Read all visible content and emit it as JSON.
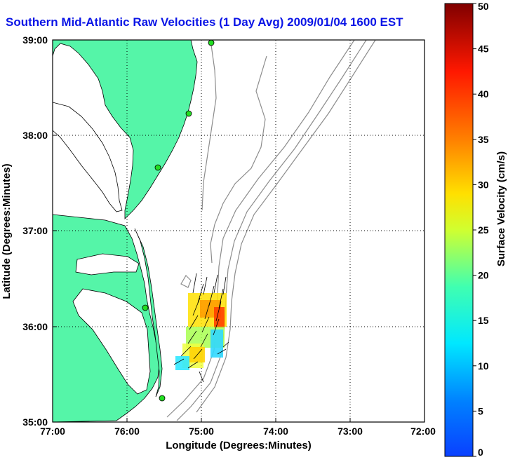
{
  "title": "Southern Mid-Atlantic Raw Velocities (1 Day Avg) 2009/01/04 1600 EST",
  "map": {
    "xlabel": "Longitude (Degrees:Minutes)",
    "ylabel": "Latitude (Degrees:Minutes)",
    "x_ticks": [
      "77:00",
      "76:00",
      "75:00",
      "74:00",
      "73:00",
      "72:00"
    ],
    "y_ticks": [
      "39:00",
      "38:00",
      "37:00",
      "36:00",
      "35:00"
    ],
    "lon_range": [
      -77,
      -72
    ],
    "lat_range": [
      35,
      39
    ],
    "grid": "dotted",
    "land_color": "#55f5a8",
    "water_color": "#ffffff",
    "bathymetry_color": "#8c8c8c",
    "station_color": "#22dd22",
    "stations": [
      {
        "lon": -74.86,
        "lat": 38.96
      },
      {
        "lon": -75.12,
        "lat": 38.22
      },
      {
        "lon": -75.58,
        "lat": 37.69
      },
      {
        "lon": -75.74,
        "lat": 36.18
      },
      {
        "lon": -75.48,
        "lat": 35.25
      }
    ]
  },
  "colorbar": {
    "label": "Surface Velocity (cm/s)",
    "ticks": [
      "0",
      "5",
      "10",
      "15",
      "20",
      "25",
      "30",
      "35",
      "40",
      "45",
      "50"
    ],
    "range": [
      0,
      50
    ]
  }
}
